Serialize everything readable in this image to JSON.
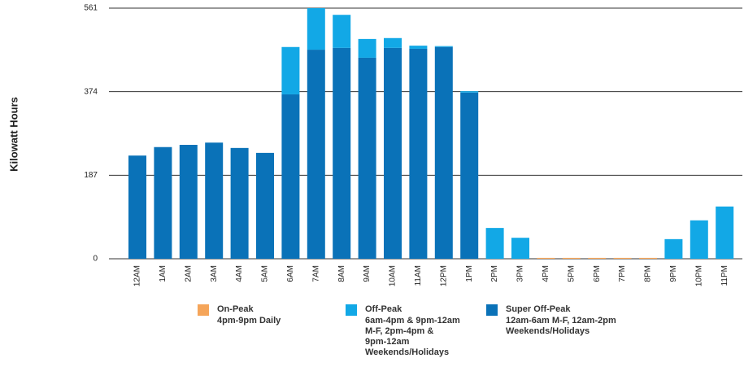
{
  "chart_data": {
    "type": "stacked_bar",
    "y_label": "Kilowatt Hours",
    "categories": [
      "12AM",
      "1AM",
      "2AM",
      "3AM",
      "4AM",
      "5AM",
      "6AM",
      "7AM",
      "8AM",
      "9AM",
      "10AM",
      "11AM",
      "12PM",
      "1PM",
      "2PM",
      "3PM",
      "4PM",
      "5PM",
      "6PM",
      "7PM",
      "8PM",
      "9PM",
      "10PM",
      "11PM"
    ],
    "series": [
      {
        "name": "On-Peak",
        "description": [
          "4pm-9pm Daily"
        ],
        "color": "#f5a55a",
        "values": [
          0,
          0,
          0,
          0,
          0,
          0,
          0,
          0,
          0,
          0,
          0,
          0,
          0,
          0,
          0,
          0,
          2,
          2,
          2,
          2,
          2,
          0,
          0,
          0
        ]
      },
      {
        "name": "Off-Peak",
        "description": [
          "6am-4pm & 9pm-12am",
          "M-F, 2pm-4pm &",
          "9pm-12am",
          "Weekends/Holidays"
        ],
        "color": "#12a8e6",
        "values": [
          0,
          0,
          0,
          0,
          0,
          0,
          106,
          93,
          74,
          42,
          22,
          7,
          2,
          3,
          69,
          47,
          0,
          0,
          0,
          0,
          0,
          44,
          86,
          117
        ]
      },
      {
        "name": "Super Off-Peak",
        "description": [
          "12am-6am M-F, 12am-2pm",
          "Weekends/Holidays"
        ],
        "color": "#0a72b8",
        "values": [
          231,
          250,
          255,
          260,
          248,
          237,
          368,
          468,
          472,
          450,
          472,
          470,
          474,
          372,
          0,
          0,
          0,
          0,
          0,
          0,
          0,
          0,
          0,
          0
        ]
      }
    ],
    "ylim": [
      0,
      561
    ],
    "yticks": [
      0,
      187,
      374,
      561
    ],
    "grid": true
  }
}
